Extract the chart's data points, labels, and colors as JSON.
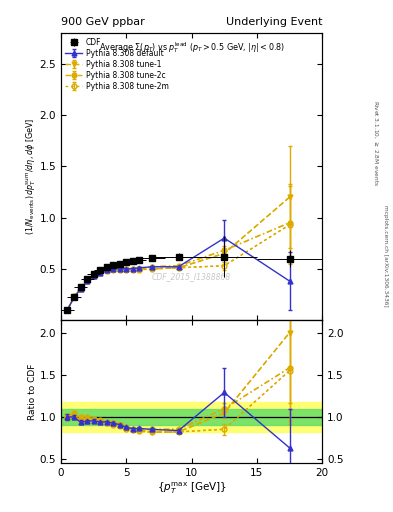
{
  "title_left": "900 GeV ppbar",
  "title_right": "Underlying Event",
  "plot_title": "Average $\\Sigma(p_T)$ vs $p_T^{lead}$ ($p_T > 0.5$ GeV, $|\\eta| < 0.8$)",
  "ylabel_main": "$(1/N_{\\rm events})\\, dp_T^{\\rm sum}/d\\eta, d\\phi$ [GeV]",
  "ylabel_ratio": "Ratio to CDF",
  "xlabel": "$\\{p_T^{\\rm max}$ [GeV]$\\}$",
  "watermark": "CDF_2015_I1388868",
  "right_label1": "Rivet 3.1.10, $\\geq$ 2.8M events",
  "right_label2": "mcplots.cern.ch [arXiv:1306.3436]",
  "cdf_x": [
    0.5,
    1.0,
    1.5,
    2.0,
    2.5,
    3.0,
    3.5,
    4.0,
    4.5,
    5.0,
    5.5,
    6.0,
    7.0,
    9.0,
    12.5,
    17.5
  ],
  "cdf_y": [
    0.1,
    0.22,
    0.32,
    0.4,
    0.45,
    0.49,
    0.52,
    0.54,
    0.55,
    0.57,
    0.58,
    0.59,
    0.61,
    0.62,
    0.62,
    0.6
  ],
  "cdf_yerr": [
    0.01,
    0.02,
    0.02,
    0.02,
    0.02,
    0.02,
    0.02,
    0.02,
    0.02,
    0.02,
    0.02,
    0.02,
    0.02,
    0.03,
    0.2,
    0.08
  ],
  "cdf_xerr": [
    0.5,
    0.5,
    0.5,
    0.5,
    0.5,
    0.5,
    0.5,
    0.5,
    0.5,
    0.5,
    0.5,
    0.5,
    1.0,
    2.0,
    2.5,
    2.5
  ],
  "py_default_x": [
    0.5,
    1.0,
    1.5,
    2.0,
    2.5,
    3.0,
    3.5,
    4.0,
    4.5,
    5.0,
    5.5,
    6.0,
    7.0,
    9.0,
    12.5,
    17.5
  ],
  "py_default_y": [
    0.1,
    0.22,
    0.3,
    0.38,
    0.43,
    0.46,
    0.49,
    0.5,
    0.5,
    0.5,
    0.5,
    0.51,
    0.52,
    0.52,
    0.8,
    0.38
  ],
  "py_default_yerr": [
    0.003,
    0.005,
    0.007,
    0.007,
    0.007,
    0.007,
    0.007,
    0.007,
    0.007,
    0.007,
    0.007,
    0.007,
    0.008,
    0.01,
    0.18,
    0.28
  ],
  "py_tune1_x": [
    0.5,
    1.0,
    1.5,
    2.0,
    2.5,
    3.0,
    3.5,
    4.0,
    4.5,
    5.0,
    5.5,
    6.0,
    7.0,
    9.0,
    12.5,
    17.5
  ],
  "py_tune1_y": [
    0.1,
    0.22,
    0.31,
    0.38,
    0.43,
    0.46,
    0.48,
    0.5,
    0.5,
    0.49,
    0.49,
    0.5,
    0.5,
    0.51,
    0.65,
    1.2
  ],
  "py_tune1_yerr": [
    0.003,
    0.005,
    0.007,
    0.007,
    0.007,
    0.007,
    0.007,
    0.007,
    0.007,
    0.007,
    0.007,
    0.007,
    0.008,
    0.01,
    0.04,
    0.5
  ],
  "py_tune2c_x": [
    0.5,
    1.0,
    1.5,
    2.0,
    2.5,
    3.0,
    3.5,
    4.0,
    4.5,
    5.0,
    5.5,
    6.0,
    7.0,
    9.0,
    12.5,
    17.5
  ],
  "py_tune2c_y": [
    0.1,
    0.23,
    0.32,
    0.4,
    0.44,
    0.47,
    0.49,
    0.5,
    0.5,
    0.5,
    0.5,
    0.5,
    0.52,
    0.53,
    0.68,
    0.95
  ],
  "py_tune2c_yerr": [
    0.003,
    0.005,
    0.007,
    0.007,
    0.007,
    0.007,
    0.007,
    0.007,
    0.007,
    0.007,
    0.007,
    0.007,
    0.008,
    0.01,
    0.04,
    0.38
  ],
  "py_tune2m_x": [
    0.5,
    1.0,
    1.5,
    2.0,
    2.5,
    3.0,
    3.5,
    4.0,
    4.5,
    5.0,
    5.5,
    6.0,
    7.0,
    9.0,
    12.5,
    17.5
  ],
  "py_tune2m_y": [
    0.1,
    0.22,
    0.3,
    0.38,
    0.43,
    0.46,
    0.48,
    0.49,
    0.49,
    0.49,
    0.49,
    0.49,
    0.5,
    0.51,
    0.53,
    0.93
  ],
  "py_tune2m_yerr": [
    0.003,
    0.005,
    0.007,
    0.007,
    0.007,
    0.007,
    0.007,
    0.007,
    0.007,
    0.007,
    0.007,
    0.007,
    0.008,
    0.01,
    0.04,
    0.38
  ],
  "color_default": "#3333cc",
  "color_tune1": "#ddaa00",
  "color_tune2c": "#ddaa00",
  "color_tune2m": "#ddaa00",
  "ylim_main": [
    0.0,
    2.8
  ],
  "ylim_ratio": [
    0.45,
    2.15
  ],
  "xlim": [
    0.0,
    20.0
  ],
  "xticks": [
    0,
    5,
    10,
    15,
    20
  ],
  "yticks_main": [
    0.5,
    1.0,
    1.5,
    2.0,
    2.5
  ],
  "yticks_ratio": [
    0.5,
    1.0,
    1.5,
    2.0
  ],
  "band_yellow_lo": 0.82,
  "band_yellow_hi": 1.18,
  "band_green_lo": 0.9,
  "band_green_hi": 1.1
}
